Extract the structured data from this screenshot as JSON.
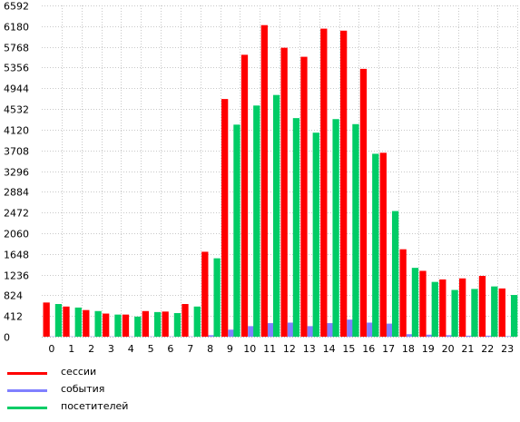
{
  "chart_data": {
    "type": "bar",
    "categories": [
      "0",
      "1",
      "2",
      "3",
      "4",
      "5",
      "6",
      "7",
      "8",
      "9",
      "10",
      "11",
      "12",
      "13",
      "14",
      "15",
      "16",
      "17",
      "18",
      "19",
      "20",
      "21",
      "22",
      "23"
    ],
    "y_ticks": [
      "0",
      "412",
      "824",
      "1236",
      "1648",
      "2060",
      "2472",
      "2884",
      "3296",
      "3708",
      "4120",
      "4532",
      "4944",
      "5356",
      "5768",
      "6180",
      "6592"
    ],
    "ylim": [
      0,
      6592
    ],
    "grid": true,
    "legend_position": "bottom-left",
    "series": [
      {
        "name": "сессии",
        "color": "#ff0000",
        "values": [
          680,
          600,
          530,
          460,
          440,
          510,
          500,
          650,
          1690,
          4730,
          5610,
          6200,
          5750,
          5570,
          6130,
          6090,
          5330,
          3660,
          1740,
          1310,
          1140,
          1160,
          1210,
          960
        ]
      },
      {
        "name": "события",
        "color": "#8080ff",
        "values": [
          5,
          5,
          5,
          5,
          5,
          5,
          5,
          5,
          30,
          140,
          210,
          270,
          280,
          210,
          270,
          340,
          280,
          260,
          50,
          40,
          30,
          20,
          20,
          10
        ]
      },
      {
        "name": "посетителей",
        "color": "#00cc66",
        "values": [
          650,
          580,
          510,
          440,
          400,
          490,
          470,
          600,
          1560,
          4220,
          4600,
          4810,
          4350,
          4060,
          4330,
          4230,
          3640,
          2500,
          1370,
          1090,
          930,
          950,
          1000,
          830
        ]
      }
    ]
  }
}
